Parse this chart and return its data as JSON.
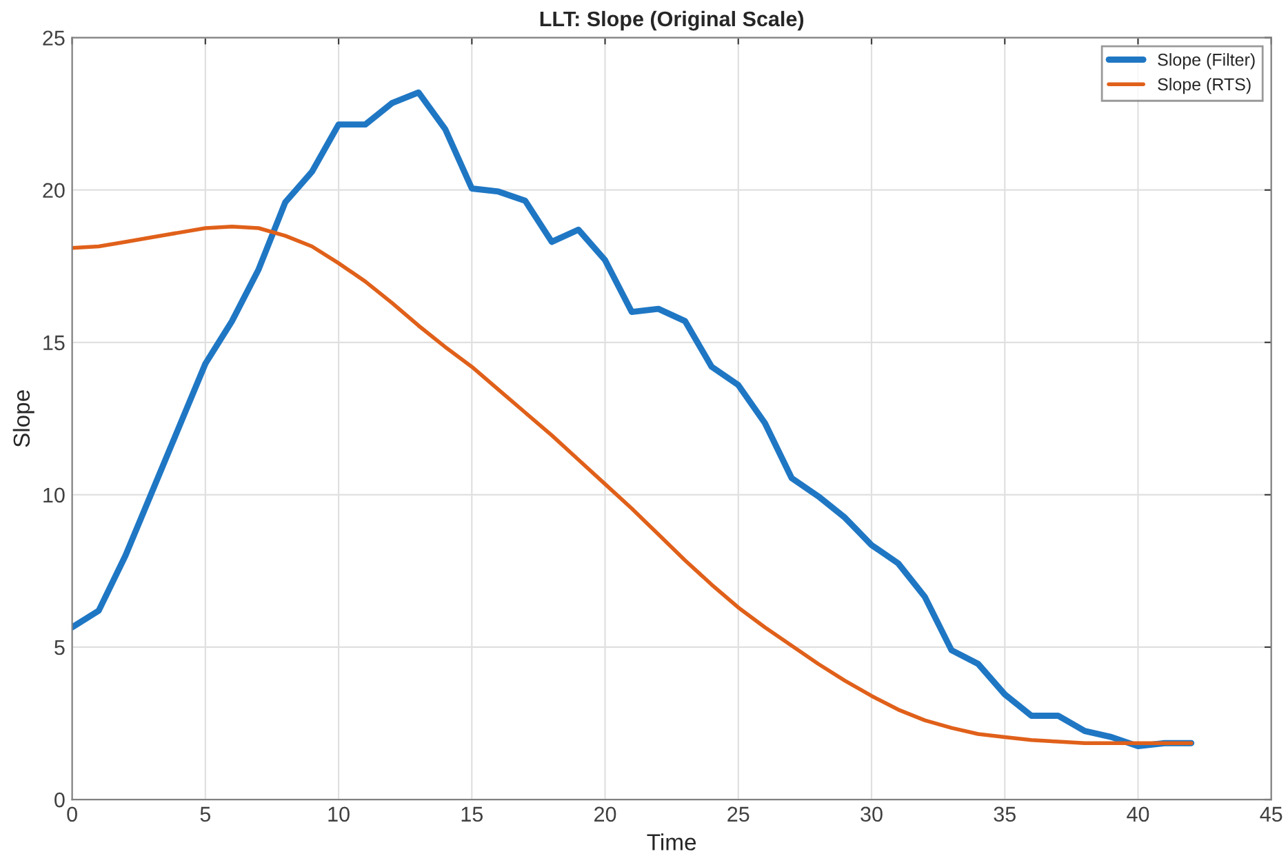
{
  "chart_data": {
    "type": "line",
    "title": "LLT: Slope (Original Scale)",
    "xlabel": "Time",
    "ylabel": "Slope",
    "x": [
      0,
      1,
      2,
      3,
      4,
      5,
      6,
      7,
      8,
      9,
      10,
      11,
      12,
      13,
      14,
      15,
      16,
      17,
      18,
      19,
      20,
      21,
      22,
      23,
      24,
      25,
      26,
      27,
      28,
      29,
      30,
      31,
      32,
      33,
      34,
      35,
      36,
      37,
      38,
      39,
      40,
      41,
      42
    ],
    "series": [
      {
        "name": "Slope (Filter)",
        "color": "#1f77c4",
        "values": [
          5.65,
          6.2,
          8.0,
          10.1,
          12.2,
          14.3,
          15.7,
          17.4,
          19.6,
          20.6,
          22.15,
          22.15,
          22.85,
          23.2,
          22.0,
          20.05,
          19.95,
          19.65,
          18.3,
          18.7,
          17.7,
          16.0,
          16.1,
          15.7,
          14.2,
          13.6,
          12.35,
          10.55,
          9.95,
          9.25,
          8.35,
          7.75,
          6.65,
          4.9,
          4.45,
          3.45,
          2.75,
          2.75,
          2.25,
          2.05,
          1.75,
          1.85,
          1.85
        ]
      },
      {
        "name": "Slope (RTS)",
        "color": "#e0601a",
        "values": [
          18.1,
          18.15,
          18.3,
          18.45,
          18.6,
          18.75,
          18.8,
          18.75,
          18.5,
          18.15,
          17.6,
          17.0,
          16.3,
          15.55,
          14.85,
          14.2,
          13.45,
          12.7,
          11.95,
          11.15,
          10.35,
          9.55,
          8.7,
          7.85,
          7.05,
          6.3,
          5.65,
          5.05,
          4.45,
          3.9,
          3.4,
          2.95,
          2.6,
          2.35,
          2.15,
          2.05,
          1.95,
          1.9,
          1.85,
          1.85,
          1.85,
          1.85,
          1.85
        ]
      }
    ],
    "xlim": [
      0,
      45
    ],
    "xticks": [
      0,
      5,
      10,
      15,
      20,
      25,
      30,
      35,
      40,
      45
    ],
    "ylim": [
      0,
      25
    ],
    "yticks": [
      0,
      5,
      10,
      15,
      20,
      25
    ],
    "grid": true,
    "legend": "top right"
  }
}
